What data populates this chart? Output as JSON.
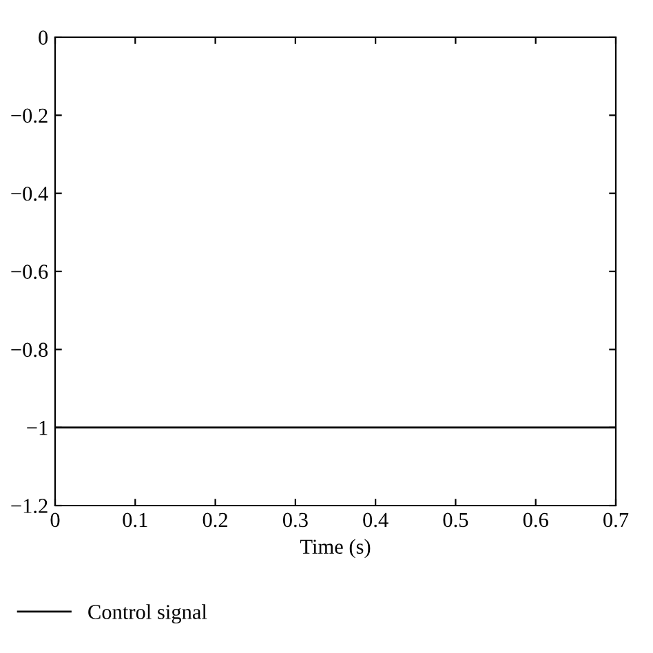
{
  "chart_data": {
    "type": "line",
    "xlabel": "Time (s)",
    "series": [
      {
        "name": "Control signal",
        "color": "#000000",
        "x": [
          0,
          0.7
        ],
        "values": [
          -1,
          -1
        ]
      }
    ],
    "xlim": [
      0,
      0.7
    ],
    "xticks": [
      0,
      0.1,
      0.2,
      0.3,
      0.4,
      0.5,
      0.6,
      0.7
    ],
    "ylim": [
      -1.2,
      0
    ],
    "yticks": [
      0,
      -0.2,
      -0.4,
      -0.6,
      -0.8,
      -1,
      -1.2
    ],
    "grid": false,
    "legend": "bottom left",
    "line_style": "solid",
    "marker": "none"
  }
}
